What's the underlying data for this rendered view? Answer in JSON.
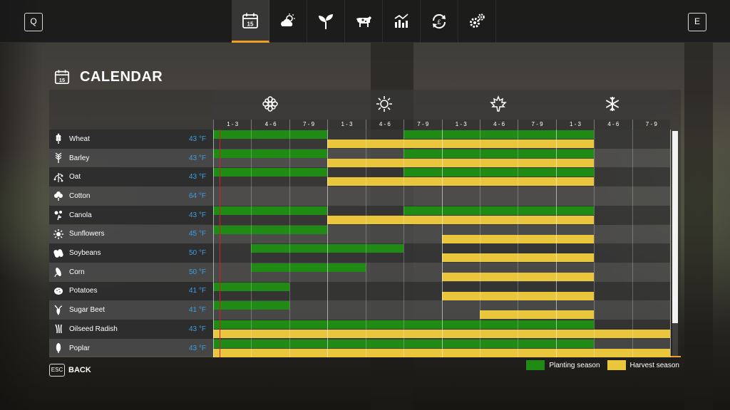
{
  "topbar": {
    "left_key": "Q",
    "right_key": "E",
    "tabs": [
      {
        "icon": "calendar-icon",
        "active": true
      },
      {
        "icon": "weather-icon",
        "active": false
      },
      {
        "icon": "sprout-icon",
        "active": false
      },
      {
        "icon": "cow-icon",
        "active": false
      },
      {
        "icon": "stats-chart-icon",
        "active": false
      },
      {
        "icon": "cycle-icon",
        "active": false
      },
      {
        "icon": "settings-icon",
        "active": false
      }
    ],
    "calendar_day": "15"
  },
  "page": {
    "title": "CALENDAR"
  },
  "seasons": [
    {
      "name": "spring",
      "icon": "flower-icon"
    },
    {
      "name": "summer",
      "icon": "sun-icon"
    },
    {
      "name": "autumn",
      "icon": "leaf-icon"
    },
    {
      "name": "winter",
      "icon": "snowflake-icon"
    }
  ],
  "months": [
    "1 - 3",
    "4 - 6",
    "7 - 9",
    "1 - 3",
    "4 - 6",
    "7 - 9",
    "1 - 3",
    "4 - 6",
    "7 - 9",
    "1 - 3",
    "4 - 6",
    "7 - 9"
  ],
  "crops": [
    {
      "name": "Wheat",
      "temp": "43 °F",
      "icon": "wheat-icon",
      "plant": [
        [
          0,
          3
        ],
        [
          5,
          10
        ]
      ],
      "harvest": [
        [
          3,
          10
        ]
      ]
    },
    {
      "name": "Barley",
      "temp": "43 °F",
      "icon": "barley-icon",
      "plant": [
        [
          0,
          3
        ],
        [
          5,
          10
        ]
      ],
      "harvest": [
        [
          3,
          10
        ]
      ]
    },
    {
      "name": "Oat",
      "temp": "43 °F",
      "icon": "oat-icon",
      "plant": [
        [
          0,
          3
        ],
        [
          5,
          10
        ]
      ],
      "harvest": [
        [
          3,
          10
        ]
      ]
    },
    {
      "name": "Cotton",
      "temp": "64 °F",
      "icon": "cotton-icon",
      "plant": [],
      "harvest": []
    },
    {
      "name": "Canola",
      "temp": "43 °F",
      "icon": "canola-icon",
      "plant": [
        [
          0,
          3
        ],
        [
          5,
          10
        ]
      ],
      "harvest": [
        [
          3,
          10
        ]
      ]
    },
    {
      "name": "Sunflowers",
      "temp": "45 °F",
      "icon": "sunflower-icon",
      "plant": [
        [
          0,
          3
        ]
      ],
      "harvest": [
        [
          6,
          10
        ]
      ]
    },
    {
      "name": "Soybeans",
      "temp": "50 °F",
      "icon": "soybean-icon",
      "plant": [
        [
          1,
          5
        ]
      ],
      "harvest": [
        [
          6,
          10
        ]
      ]
    },
    {
      "name": "Corn",
      "temp": "50 °F",
      "icon": "corn-icon",
      "plant": [
        [
          1,
          4
        ]
      ],
      "harvest": [
        [
          6,
          10
        ]
      ]
    },
    {
      "name": "Potatoes",
      "temp": "41 °F",
      "icon": "potato-icon",
      "plant": [
        [
          0,
          2
        ]
      ],
      "harvest": [
        [
          6,
          10
        ]
      ]
    },
    {
      "name": "Sugar Beet",
      "temp": "41 °F",
      "icon": "sugarbeet-icon",
      "plant": [
        [
          0,
          2
        ]
      ],
      "harvest": [
        [
          7,
          10
        ]
      ]
    },
    {
      "name": "Oilseed Radish",
      "temp": "43 °F",
      "icon": "radish-icon",
      "plant": [
        [
          0,
          10
        ]
      ],
      "harvest": [
        [
          0,
          12
        ]
      ]
    },
    {
      "name": "Poplar",
      "temp": "43 °F",
      "icon": "poplar-icon",
      "plant": [
        [
          0,
          10
        ]
      ],
      "harvest": [
        [
          0,
          12
        ]
      ]
    }
  ],
  "footer": {
    "esc_key": "ESC",
    "back_label": "BACK"
  },
  "legend": {
    "planting_label": "Planting season",
    "harvest_label": "Harvest season"
  },
  "colors": {
    "planting": "#1f8a14",
    "harvest": "#e9c63c",
    "accent": "#f0a020",
    "temperature": "#3aa0e6",
    "today_marker": "#d02020"
  }
}
